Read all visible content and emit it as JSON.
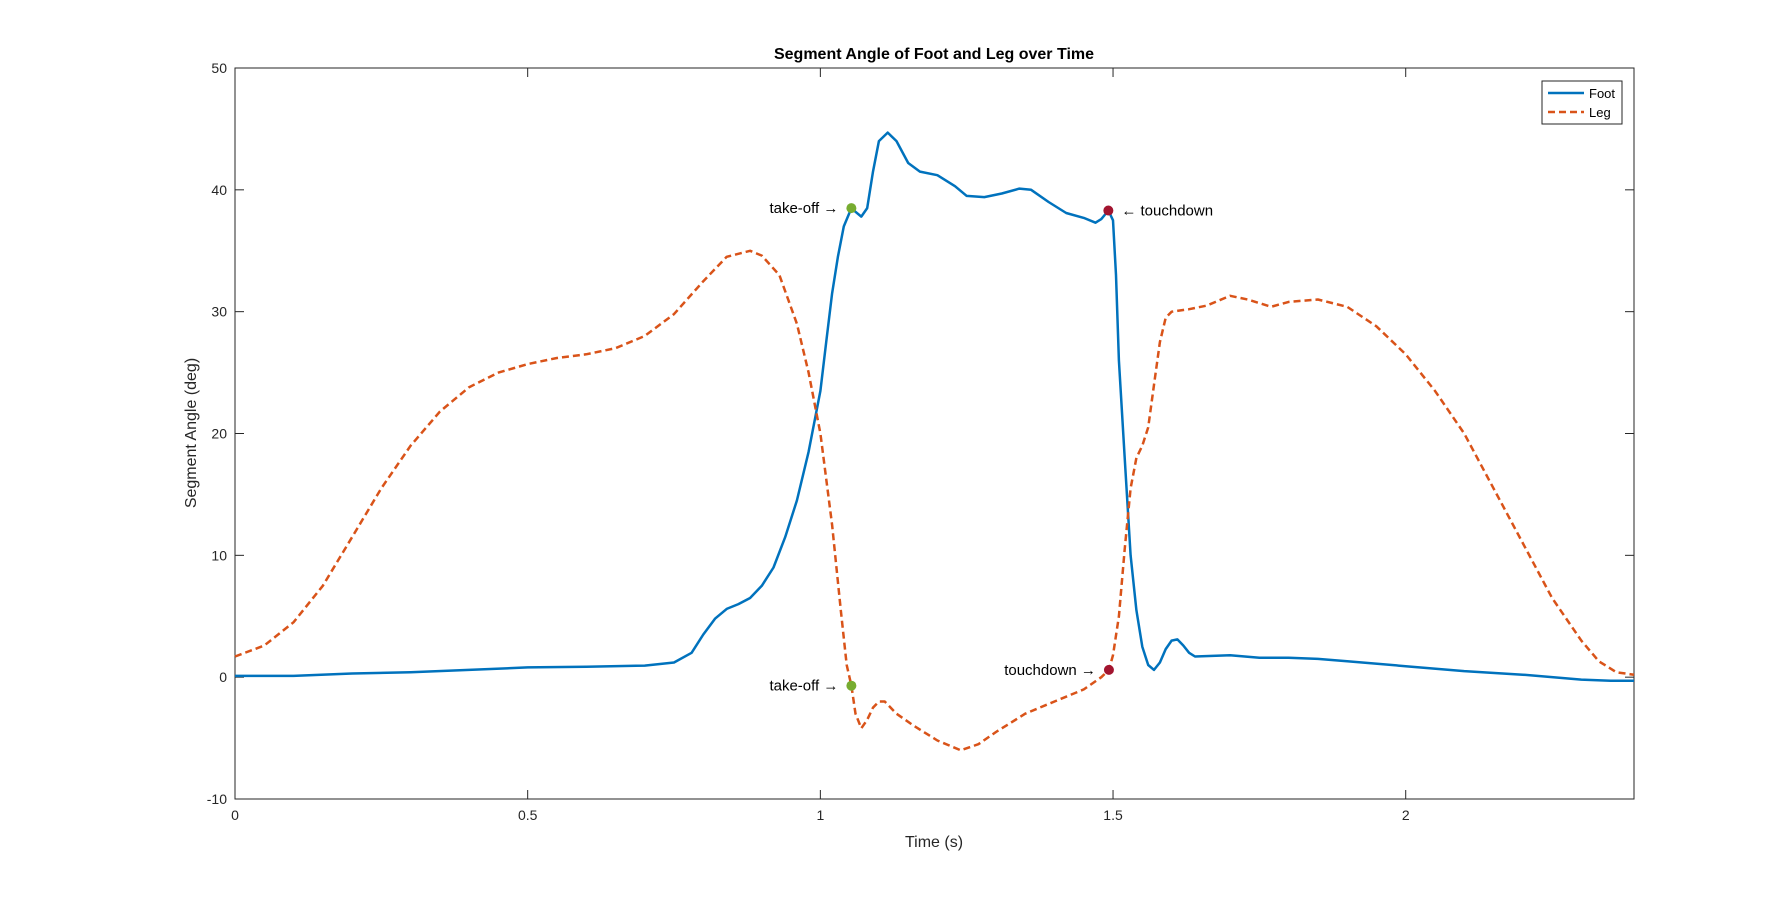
{
  "chart_data": {
    "type": "line",
    "title": "Segment Angle of Foot and Leg over Time",
    "xlabel": "Time (s)",
    "ylabel": "Segment Angle (deg)",
    "xlim": [
      0,
      2.39
    ],
    "ylim": [
      -10,
      50
    ],
    "xticks": [
      0,
      0.5,
      1,
      1.5,
      2
    ],
    "xtick_labels": [
      "0",
      "0.5",
      "1",
      "1.5",
      "2"
    ],
    "yticks": [
      -10,
      0,
      10,
      20,
      30,
      40,
      50
    ],
    "ytick_labels": [
      "-10",
      "0",
      "10",
      "20",
      "30",
      "40",
      "50"
    ],
    "grid": false,
    "legend_position": "top-right",
    "series": [
      {
        "name": "Foot",
        "color": "#0072BD",
        "line_style": "solid",
        "points": [
          [
            0,
            0.1
          ],
          [
            0.05,
            0.1
          ],
          [
            0.1,
            0.1
          ],
          [
            0.2,
            0.3
          ],
          [
            0.3,
            0.4
          ],
          [
            0.4,
            0.6
          ],
          [
            0.5,
            0.8
          ],
          [
            0.6,
            0.85
          ],
          [
            0.7,
            0.95
          ],
          [
            0.75,
            1.2
          ],
          [
            0.78,
            2.0
          ],
          [
            0.8,
            3.5
          ],
          [
            0.82,
            4.8
          ],
          [
            0.84,
            5.6
          ],
          [
            0.86,
            6.0
          ],
          [
            0.88,
            6.5
          ],
          [
            0.9,
            7.5
          ],
          [
            0.92,
            9.0
          ],
          [
            0.94,
            11.5
          ],
          [
            0.96,
            14.5
          ],
          [
            0.98,
            18.5
          ],
          [
            1.0,
            23.5
          ],
          [
            1.01,
            27.5
          ],
          [
            1.02,
            31.5
          ],
          [
            1.03,
            34.5
          ],
          [
            1.04,
            37.0
          ],
          [
            1.053,
            38.5
          ],
          [
            1.06,
            38.2
          ],
          [
            1.07,
            37.8
          ],
          [
            1.08,
            38.5
          ],
          [
            1.09,
            41.5
          ],
          [
            1.1,
            44.0
          ],
          [
            1.115,
            44.7
          ],
          [
            1.13,
            44.0
          ],
          [
            1.15,
            42.2
          ],
          [
            1.17,
            41.5
          ],
          [
            1.2,
            41.2
          ],
          [
            1.23,
            40.3
          ],
          [
            1.25,
            39.5
          ],
          [
            1.28,
            39.4
          ],
          [
            1.31,
            39.7
          ],
          [
            1.34,
            40.1
          ],
          [
            1.36,
            40.0
          ],
          [
            1.39,
            39.0
          ],
          [
            1.42,
            38.1
          ],
          [
            1.45,
            37.7
          ],
          [
            1.47,
            37.3
          ],
          [
            1.48,
            37.6
          ],
          [
            1.492,
            38.3
          ],
          [
            1.5,
            37.5
          ],
          [
            1.505,
            33.0
          ],
          [
            1.51,
            26.0
          ],
          [
            1.52,
            18.0
          ],
          [
            1.53,
            10.0
          ],
          [
            1.54,
            5.5
          ],
          [
            1.55,
            2.5
          ],
          [
            1.56,
            1.0
          ],
          [
            1.57,
            0.6
          ],
          [
            1.58,
            1.2
          ],
          [
            1.59,
            2.3
          ],
          [
            1.6,
            3.0
          ],
          [
            1.61,
            3.1
          ],
          [
            1.62,
            2.6
          ],
          [
            1.63,
            2.0
          ],
          [
            1.64,
            1.7
          ],
          [
            1.7,
            1.8
          ],
          [
            1.75,
            1.6
          ],
          [
            1.8,
            1.6
          ],
          [
            1.85,
            1.5
          ],
          [
            1.9,
            1.3
          ],
          [
            2.0,
            0.9
          ],
          [
            2.1,
            0.5
          ],
          [
            2.2,
            0.2
          ],
          [
            2.3,
            -0.2
          ],
          [
            2.35,
            -0.3
          ],
          [
            2.39,
            -0.3
          ]
        ]
      },
      {
        "name": "Leg",
        "color": "#D95319",
        "line_style": "dashed",
        "points": [
          [
            0,
            1.7
          ],
          [
            0.05,
            2.6
          ],
          [
            0.1,
            4.5
          ],
          [
            0.15,
            7.5
          ],
          [
            0.2,
            11.5
          ],
          [
            0.25,
            15.5
          ],
          [
            0.3,
            19.0
          ],
          [
            0.35,
            21.8
          ],
          [
            0.4,
            23.8
          ],
          [
            0.45,
            25.0
          ],
          [
            0.5,
            25.7
          ],
          [
            0.55,
            26.2
          ],
          [
            0.6,
            26.5
          ],
          [
            0.65,
            27.0
          ],
          [
            0.7,
            28.0
          ],
          [
            0.75,
            29.8
          ],
          [
            0.8,
            32.5
          ],
          [
            0.84,
            34.5
          ],
          [
            0.88,
            35.0
          ],
          [
            0.9,
            34.6
          ],
          [
            0.93,
            33.0
          ],
          [
            0.96,
            29.0
          ],
          [
            0.98,
            25.0
          ],
          [
            1.0,
            20.0
          ],
          [
            1.02,
            12.5
          ],
          [
            1.035,
            5.5
          ],
          [
            1.045,
            1.0
          ],
          [
            1.053,
            -0.7
          ],
          [
            1.06,
            -3.0
          ],
          [
            1.07,
            -4.2
          ],
          [
            1.08,
            -3.5
          ],
          [
            1.09,
            -2.5
          ],
          [
            1.1,
            -2.0
          ],
          [
            1.11,
            -2.0
          ],
          [
            1.13,
            -3.0
          ],
          [
            1.16,
            -4.0
          ],
          [
            1.2,
            -5.2
          ],
          [
            1.24,
            -6.0
          ],
          [
            1.27,
            -5.5
          ],
          [
            1.3,
            -4.5
          ],
          [
            1.35,
            -3.0
          ],
          [
            1.4,
            -2.0
          ],
          [
            1.45,
            -1.0
          ],
          [
            1.48,
            0.0
          ],
          [
            1.493,
            0.6
          ],
          [
            1.5,
            1.8
          ],
          [
            1.51,
            5.0
          ],
          [
            1.52,
            10.5
          ],
          [
            1.53,
            15.5
          ],
          [
            1.54,
            18.0
          ],
          [
            1.55,
            19.0
          ],
          [
            1.56,
            20.5
          ],
          [
            1.57,
            24.0
          ],
          [
            1.58,
            27.5
          ],
          [
            1.59,
            29.5
          ],
          [
            1.6,
            30.0
          ],
          [
            1.63,
            30.2
          ],
          [
            1.66,
            30.5
          ],
          [
            1.7,
            31.3
          ],
          [
            1.73,
            31.0
          ],
          [
            1.77,
            30.4
          ],
          [
            1.8,
            30.8
          ],
          [
            1.85,
            31.0
          ],
          [
            1.9,
            30.4
          ],
          [
            1.95,
            28.8
          ],
          [
            2.0,
            26.5
          ],
          [
            2.05,
            23.5
          ],
          [
            2.1,
            20.0
          ],
          [
            2.15,
            15.5
          ],
          [
            2.2,
            11.0
          ],
          [
            2.25,
            6.5
          ],
          [
            2.3,
            3.0
          ],
          [
            2.33,
            1.3
          ],
          [
            2.36,
            0.4
          ],
          [
            2.39,
            0.2
          ]
        ]
      }
    ],
    "annotations": [
      {
        "text": "take-off →",
        "x": 1.053,
        "y": 38.5,
        "marker_color": "#77AC30",
        "side": "left"
      },
      {
        "text": "← touchdown",
        "x": 1.492,
        "y": 38.3,
        "marker_color": "#A2142F",
        "side": "right"
      },
      {
        "text": "take-off →",
        "x": 1.053,
        "y": -0.7,
        "marker_color": "#77AC30",
        "side": "left"
      },
      {
        "text": "touchdown →",
        "x": 1.493,
        "y": 0.6,
        "marker_color": "#A2142F",
        "side": "left"
      }
    ]
  }
}
